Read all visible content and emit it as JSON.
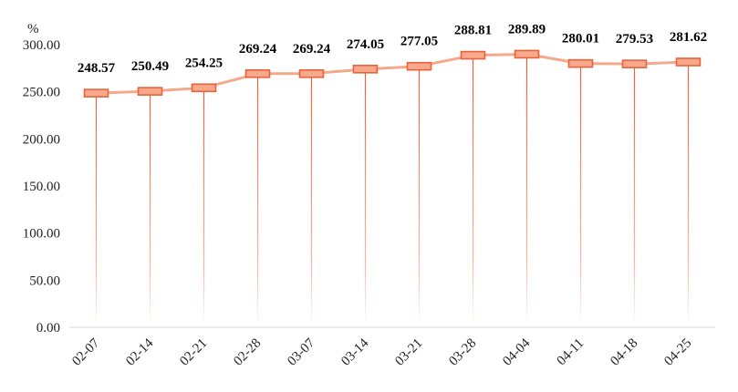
{
  "chart_data": {
    "type": "line",
    "unit": "%",
    "categories": [
      "02-07",
      "02-14",
      "02-21",
      "02-28",
      "03-07",
      "03-14",
      "03-21",
      "03-28",
      "04-04",
      "04-11",
      "04-18",
      "04-25"
    ],
    "values": [
      248.57,
      250.49,
      254.25,
      269.24,
      269.24,
      274.05,
      277.05,
      288.81,
      289.89,
      280.01,
      279.53,
      281.62
    ],
    "value_labels": [
      "248.57",
      "250.49",
      "254.25",
      "269.24",
      "269.24",
      "274.05",
      "277.05",
      "288.81",
      "289.89",
      "280.01",
      "279.53",
      "281.62"
    ],
    "y_ticks": [
      "0.00",
      "50.00",
      "100.00",
      "150.00",
      "200.00",
      "250.00",
      "300.00"
    ],
    "ylim": [
      0,
      300
    ],
    "grid": false,
    "colors": {
      "line": "#F6A98A",
      "marker_fill": "#F8A98C",
      "marker_stroke": "#E8623A",
      "drop_line": "#E8623A",
      "axis": "#D9D9D9"
    }
  }
}
